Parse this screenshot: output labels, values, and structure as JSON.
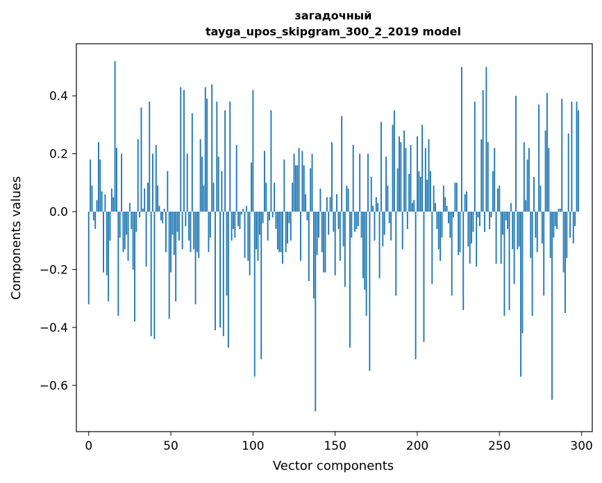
{
  "chart_data": {
    "type": "bar",
    "title_line1": "загадочный",
    "title_line2": "tayga_upos_skipgram_300_2_2019 model",
    "xlabel": "Vector components",
    "ylabel": "Components values",
    "xlim": [
      -7.5,
      306.5
    ],
    "ylim": [
      -0.76,
      0.58
    ],
    "xticks": [
      0,
      50,
      100,
      150,
      200,
      250,
      300
    ],
    "yticks": [
      -0.6,
      -0.4,
      -0.2,
      0.0,
      0.2,
      0.4
    ],
    "ytick_labels": [
      "−0.6",
      "−0.4",
      "−0.2",
      "0.0",
      "0.2",
      "0.4"
    ],
    "bar_color": "#1f77b4",
    "values": [
      -0.32,
      0.18,
      0.09,
      -0.03,
      -0.06,
      0.04,
      0.24,
      0.18,
      0.07,
      -0.21,
      0.06,
      -0.22,
      -0.31,
      -0.1,
      0.08,
      0.05,
      0.52,
      0.22,
      -0.36,
      -0.09,
      0.2,
      -0.14,
      -0.13,
      -0.08,
      -0.17,
      0.03,
      -0.06,
      -0.2,
      -0.38,
      -0.07,
      0.25,
      -0.02,
      0.36,
      0.01,
      0.08,
      -0.19,
      0.1,
      0.38,
      -0.43,
      0.2,
      -0.44,
      0.23,
      0.09,
      0.02,
      -0.03,
      -0.04,
      0.01,
      -0.14,
      0.14,
      -0.37,
      -0.21,
      -0.08,
      -0.15,
      -0.31,
      -0.07,
      -0.1,
      0.43,
      -0.13,
      0.42,
      -0.05,
      0.2,
      -0.1,
      -0.14,
      0.34,
      -0.13,
      -0.32,
      -0.14,
      -0.16,
      0.25,
      0.19,
      0.09,
      0.43,
      0.39,
      -0.14,
      -0.09,
      0.44,
      0.1,
      -0.41,
      0.38,
      0.19,
      -0.4,
      0.14,
      -0.43,
      0.35,
      -0.29,
      -0.47,
      0.38,
      -0.1,
      -0.06,
      -0.09,
      0.23,
      -0.05,
      -0.06,
      -0.01,
      0.01,
      -0.16,
      0.02,
      -0.17,
      -0.22,
      0.17,
      0.42,
      -0.57,
      -0.13,
      -0.17,
      -0.08,
      -0.51,
      -0.04,
      0.21,
      0.1,
      -0.1,
      -0.03,
      0.35,
      -0.02,
      0.1,
      -0.06,
      -0.13,
      -0.14,
      -0.14,
      -0.18,
      0.18,
      -0.14,
      -0.11,
      -0.04,
      -0.1,
      0.1,
      0.2,
      0.16,
      0.16,
      0.22,
      -0.17,
      0.21,
      0.16,
      0.06,
      -0.03,
      -0.24,
      0.15,
      0.2,
      -0.3,
      -0.69,
      -0.15,
      -0.09,
      0.08,
      -0.14,
      -0.21,
      -0.21,
      0.05,
      -0.08,
      0.05,
      0.24,
      -0.07,
      -0.22,
      0.06,
      -0.06,
      -0.17,
      0.33,
      -0.12,
      -0.26,
      0.09,
      0.08,
      -0.47,
      -0.09,
      0.23,
      -0.07,
      -0.06,
      -0.05,
      0.2,
      -0.09,
      -0.23,
      -0.27,
      -0.36,
      0.2,
      -0.55,
      0.12,
      0.02,
      -0.1,
      0.05,
      0.03,
      -0.23,
      0.31,
      -0.12,
      -0.08,
      0.19,
      0.09,
      -0.04,
      -0.1,
      0.3,
      0.35,
      -0.29,
      0.15,
      0.26,
      0.24,
      -0.13,
      0.28,
      0.22,
      -0.06,
      0.13,
      0.23,
      0.03,
      0.04,
      -0.51,
      0.26,
      0.14,
      0.12,
      0.3,
      -0.45,
      0.22,
      0.11,
      0.25,
      0.14,
      -0.25,
      0.09,
      0.03,
      -0.06,
      -0.13,
      -0.17,
      -0.09,
      0.09,
      0.05,
      0.02,
      -0.04,
      -0.09,
      -0.29,
      -0.02,
      0.1,
      0.1,
      -0.15,
      -0.14,
      0.5,
      -0.34,
      0.06,
      0.07,
      -0.12,
      -0.18,
      -0.11,
      -0.07,
      0.38,
      -0.19,
      -0.02,
      -0.05,
      0.25,
      0.42,
      -0.07,
      0.5,
      0.24,
      -0.06,
      -0.02,
      0.14,
      0.22,
      -0.18,
      0.08,
      0.09,
      -0.18,
      -0.08,
      -0.36,
      -0.03,
      -0.06,
      -0.34,
      0.03,
      -0.13,
      -0.25,
      0.4,
      -0.13,
      -0.12,
      -0.57,
      -0.42,
      0.24,
      0.04,
      0.18,
      0.22,
      -0.16,
      -0.36,
      0.12,
      -0.09,
      -0.14,
      0.37,
      0.09,
      -0.11,
      -0.29,
      0.28,
      0.41,
      0.22,
      -0.16,
      -0.65,
      -0.09,
      -0.05,
      -0.06,
      0.01,
      0.01,
      0.39,
      -0.21,
      -0.35,
      -0.16,
      0.27,
      -0.09,
      0.38,
      -0.11,
      -0.05,
      0.38,
      0.35
    ]
  }
}
